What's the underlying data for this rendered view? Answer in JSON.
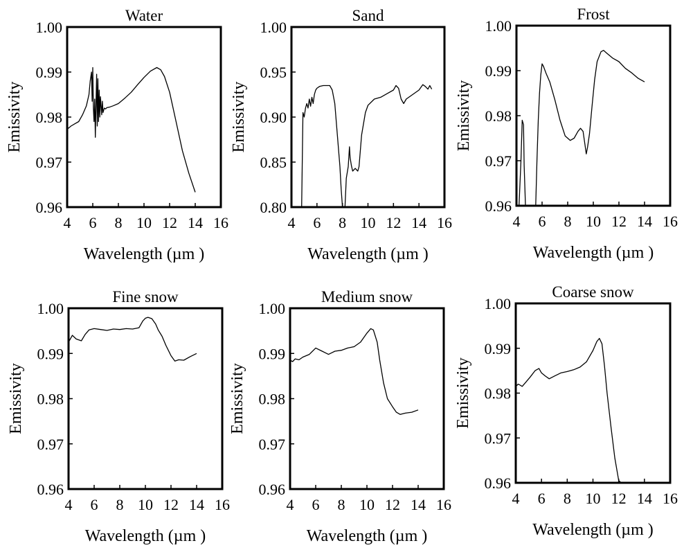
{
  "chart_data": [
    {
      "type": "line",
      "title": "Water",
      "xlabel": "Wavelength (µm )",
      "ylabel": "Emissivity",
      "xlim": [
        4,
        16
      ],
      "ylim": [
        0.96,
        1.0
      ],
      "xticks": [
        "4",
        "6",
        "8",
        "10",
        "12",
        "14",
        "16"
      ],
      "yticks": [
        "0.96",
        "0.97",
        "0.98",
        "0.99",
        "1.00"
      ],
      "grid": false,
      "series": [
        {
          "x": [
            4.0,
            4.3,
            4.6,
            4.9,
            5.2,
            5.5,
            5.7,
            5.8,
            5.9,
            5.95,
            6.0,
            6.05,
            6.1,
            6.15,
            6.2,
            6.3,
            6.35,
            6.4,
            6.45,
            6.5,
            6.55,
            6.6,
            6.7,
            6.75,
            6.8,
            6.9,
            7.0,
            7.1,
            7.3,
            7.6,
            8.0,
            8.5,
            9.0,
            9.5,
            10.0,
            10.5,
            11.0,
            11.3,
            11.6,
            12.0,
            12.5,
            13.0,
            13.5,
            14.0
          ],
          "y": [
            0.9773,
            0.978,
            0.9785,
            0.979,
            0.9805,
            0.9825,
            0.985,
            0.988,
            0.99,
            0.9835,
            0.991,
            0.982,
            0.979,
            0.984,
            0.9755,
            0.9895,
            0.978,
            0.9885,
            0.979,
            0.986,
            0.98,
            0.9845,
            0.9805,
            0.9835,
            0.981,
            0.982,
            0.9818,
            0.9821,
            0.9822,
            0.9825,
            0.983,
            0.9842,
            0.9855,
            0.9872,
            0.9888,
            0.9902,
            0.991,
            0.9905,
            0.989,
            0.9855,
            0.979,
            0.9725,
            0.9675,
            0.9633
          ]
        }
      ]
    },
    {
      "type": "line",
      "title": "Sand",
      "xlabel": "Wavelength (µm )",
      "ylabel": "Emissivity",
      "xlim": [
        4,
        16
      ],
      "ylim": [
        0.8,
        1.0
      ],
      "xticks": [
        "4",
        "6",
        "8",
        "10",
        "12",
        "14",
        "16"
      ],
      "yticks": [
        "0.80",
        "0.85",
        "0.90",
        "0.95",
        "1.00"
      ],
      "grid": false,
      "series": [
        {
          "x": [
            4.8,
            4.9,
            5.0,
            5.1,
            5.2,
            5.3,
            5.4,
            5.5,
            5.6,
            5.7,
            5.8,
            5.9,
            6.0,
            6.2,
            6.5,
            7.0,
            7.2,
            7.4,
            7.6,
            7.8,
            7.9,
            8.0,
            8.1,
            8.2,
            8.3,
            8.45,
            8.55,
            8.6,
            8.7,
            8.8,
            9.0,
            9.2,
            9.3,
            9.5,
            9.8,
            10.0,
            10.5,
            11.0,
            11.5,
            12.0,
            12.2,
            12.4,
            12.6,
            12.8,
            13.0,
            13.5,
            14.0,
            14.3,
            14.5,
            14.7,
            14.85,
            15.0
          ],
          "y": [
            0.8,
            0.905,
            0.9,
            0.91,
            0.915,
            0.91,
            0.92,
            0.912,
            0.922,
            0.915,
            0.925,
            0.93,
            0.932,
            0.934,
            0.935,
            0.935,
            0.93,
            0.915,
            0.88,
            0.845,
            0.82,
            0.8,
            0.8,
            0.8,
            0.832,
            0.845,
            0.867,
            0.855,
            0.846,
            0.84,
            0.843,
            0.84,
            0.845,
            0.88,
            0.905,
            0.913,
            0.92,
            0.922,
            0.926,
            0.93,
            0.935,
            0.932,
            0.92,
            0.915,
            0.92,
            0.925,
            0.93,
            0.936,
            0.934,
            0.931,
            0.935,
            0.931
          ]
        }
      ]
    },
    {
      "type": "line",
      "title": "Frost",
      "xlabel": "Wavelength (µm )",
      "ylabel": "Emissivity",
      "xlim": [
        4,
        16
      ],
      "ylim": [
        0.96,
        1.0
      ],
      "xticks": [
        "4",
        "6",
        "8",
        "10",
        "12",
        "14",
        "16"
      ],
      "yticks": [
        "0.96",
        "0.97",
        "0.98",
        "0.99",
        "1.00"
      ],
      "grid": false,
      "series": [
        {
          "x": [
            4.0,
            4.1,
            4.2,
            4.35,
            4.45,
            4.55,
            4.6,
            4.7,
            4.75,
            5.5,
            5.6,
            5.7,
            5.8,
            5.9,
            6.0,
            6.1,
            6.3,
            6.6,
            7.0,
            7.4,
            7.8,
            8.2,
            8.5,
            8.8,
            9.0,
            9.2,
            9.35,
            9.45,
            9.55,
            9.7,
            9.9,
            10.1,
            10.3,
            10.6,
            10.8,
            11.0,
            11.5,
            12.0,
            12.5,
            13.0,
            13.5,
            14.0
          ],
          "y": [
            0.96,
            0.96,
            0.96,
            0.97,
            0.979,
            0.978,
            0.969,
            0.96,
            0.96,
            0.96,
            0.97,
            0.979,
            0.985,
            0.989,
            0.9915,
            0.991,
            0.9895,
            0.9875,
            0.9835,
            0.979,
            0.9755,
            0.9745,
            0.975,
            0.9765,
            0.9772,
            0.9765,
            0.9735,
            0.9715,
            0.973,
            0.976,
            0.982,
            0.988,
            0.992,
            0.9942,
            0.9945,
            0.994,
            0.9928,
            0.992,
            0.9905,
            0.9895,
            0.9883,
            0.9875
          ]
        }
      ]
    },
    {
      "type": "line",
      "title": "Fine snow",
      "xlabel": "Wavelength (µm )",
      "ylabel": "Emissivity",
      "xlim": [
        4,
        16
      ],
      "ylim": [
        0.96,
        1.0
      ],
      "xticks": [
        "4",
        "6",
        "8",
        "10",
        "12",
        "14",
        "16"
      ],
      "yticks": [
        "0.96",
        "0.97",
        "0.98",
        "0.99",
        "1.00"
      ],
      "grid": false,
      "series": [
        {
          "x": [
            4.0,
            4.3,
            4.6,
            5.0,
            5.3,
            5.6,
            6.0,
            6.5,
            7.0,
            7.5,
            8.0,
            8.5,
            9.0,
            9.5,
            9.8,
            10.0,
            10.2,
            10.5,
            10.8,
            11.0,
            11.3,
            11.6,
            12.0,
            12.3,
            12.6,
            13.0,
            13.5,
            14.0
          ],
          "y": [
            0.9925,
            0.994,
            0.9932,
            0.9928,
            0.9942,
            0.9952,
            0.9955,
            0.9953,
            0.9951,
            0.9954,
            0.9953,
            0.9955,
            0.9954,
            0.9957,
            0.9972,
            0.9978,
            0.998,
            0.9977,
            0.9965,
            0.9952,
            0.9938,
            0.9918,
            0.9895,
            0.9883,
            0.9886,
            0.9885,
            0.9893,
            0.99
          ]
        }
      ]
    },
    {
      "type": "line",
      "title": "Medium snow",
      "xlabel": "Wavelength (µm )",
      "ylabel": "Emissivity",
      "xlim": [
        4,
        16
      ],
      "ylim": [
        0.96,
        1.0
      ],
      "xticks": [
        "4",
        "6",
        "8",
        "10",
        "12",
        "14",
        "16"
      ],
      "yticks": [
        "0.96",
        "0.97",
        "0.98",
        "0.99",
        "1.00"
      ],
      "grid": false,
      "series": [
        {
          "x": [
            4.0,
            4.2,
            4.4,
            4.7,
            5.0,
            5.5,
            6.0,
            6.5,
            7.0,
            7.5,
            8.0,
            8.5,
            9.0,
            9.5,
            10.0,
            10.3,
            10.5,
            10.8,
            11.0,
            11.3,
            11.6,
            12.0,
            12.3,
            12.6,
            13.0,
            13.5,
            14.0
          ],
          "y": [
            0.9885,
            0.9882,
            0.9888,
            0.9886,
            0.9892,
            0.9898,
            0.9912,
            0.9905,
            0.9898,
            0.9905,
            0.9907,
            0.9912,
            0.9915,
            0.9925,
            0.9945,
            0.9955,
            0.9952,
            0.9925,
            0.9885,
            0.9835,
            0.98,
            0.9782,
            0.977,
            0.9765,
            0.9768,
            0.977,
            0.9775
          ]
        }
      ]
    },
    {
      "type": "line",
      "title": "Coarse snow",
      "xlabel": "Wavelength (µm )",
      "ylabel": "Emissivity",
      "xlim": [
        4,
        16
      ],
      "ylim": [
        0.96,
        1.0
      ],
      "xticks": [
        "4",
        "6",
        "8",
        "10",
        "12",
        "14",
        "16"
      ],
      "yticks": [
        "0.96",
        "0.97",
        "0.98",
        "0.99",
        "1.00"
      ],
      "grid": false,
      "series": [
        {
          "x": [
            4.0,
            4.2,
            4.5,
            4.8,
            5.1,
            5.5,
            5.8,
            6.0,
            6.3,
            6.6,
            7.0,
            7.5,
            8.0,
            8.5,
            9.0,
            9.5,
            10.0,
            10.3,
            10.5,
            10.7,
            10.9,
            11.1,
            11.4,
            11.7,
            12.0,
            12.2
          ],
          "y": [
            0.9815,
            0.982,
            0.9815,
            0.9825,
            0.9835,
            0.985,
            0.9855,
            0.9845,
            0.9838,
            0.9832,
            0.9838,
            0.9845,
            0.9848,
            0.9852,
            0.9858,
            0.987,
            0.9895,
            0.9915,
            0.9922,
            0.991,
            0.986,
            0.98,
            0.9725,
            0.9655,
            0.9605,
            0.96
          ]
        }
      ]
    }
  ]
}
